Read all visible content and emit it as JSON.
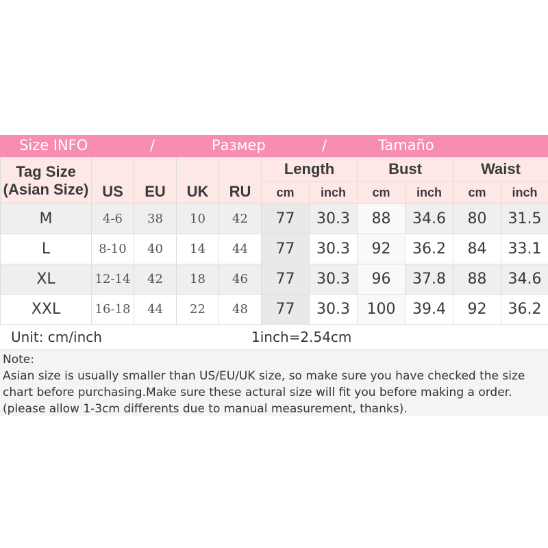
{
  "banner": {
    "en": "Size INFO",
    "sep1": "/",
    "ru": "Размер",
    "sep2": "/",
    "es": "Tamaño"
  },
  "colors": {
    "banner": "#f78db3",
    "header": "#fde8e6",
    "row_alt": "#efefef"
  },
  "headers": {
    "tag": "Tag Size",
    "tag_sub": "(Asian Size)",
    "us": "US",
    "eu": "EU",
    "uk": "UK",
    "ru": "RU",
    "length": "Length",
    "bust": "Bust",
    "waist": "Waist",
    "cm": "cm",
    "inch": "inch"
  },
  "rows": [
    {
      "tag": "M",
      "us": "4-6",
      "eu": "38",
      "uk": "10",
      "ru": "42",
      "len_cm": "77",
      "len_in": "30.3",
      "bust_cm": "88",
      "bust_in": "34.6",
      "waist_cm": "80",
      "waist_in": "31.5"
    },
    {
      "tag": "L",
      "us": "8-10",
      "eu": "40",
      "uk": "14",
      "ru": "44",
      "len_cm": "77",
      "len_in": "30.3",
      "bust_cm": "92",
      "bust_in": "36.2",
      "waist_cm": "84",
      "waist_in": "33.1"
    },
    {
      "tag": "XL",
      "us": "12-14",
      "eu": "42",
      "uk": "18",
      "ru": "46",
      "len_cm": "77",
      "len_in": "30.3",
      "bust_cm": "96",
      "bust_in": "37.8",
      "waist_cm": "88",
      "waist_in": "34.6"
    },
    {
      "tag": "XXL",
      "us": "16-18",
      "eu": "44",
      "uk": "22",
      "ru": "48",
      "len_cm": "77",
      "len_in": "30.3",
      "bust_cm": "100",
      "bust_in": "39.4",
      "waist_cm": "92",
      "waist_in": "36.2"
    }
  ],
  "unit": {
    "label": "Unit: cm/inch",
    "conversion": "1inch=2.54cm"
  },
  "note": {
    "title": "Note:",
    "text": "Asian size is usually smaller than US/EU/UK size, so make sure you have checked the size chart before purchasing.Make sure these actural size will fit you before making a order.(please allow 1-3cm differents due to manual measurement, thanks)."
  }
}
